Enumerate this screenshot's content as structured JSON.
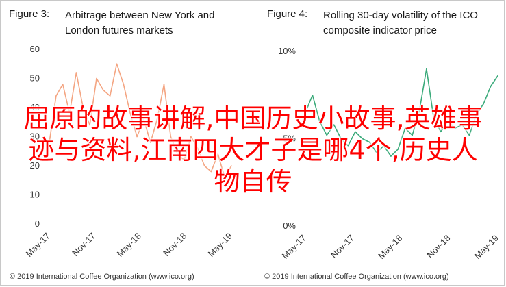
{
  "overlay": {
    "line1": "屈原的故事讲解,中国历史小故事,英雄事",
    "line2": "迹与资料,江南四大才子是哪4个,历史人",
    "line3": "物自传"
  },
  "chart_data": [
    {
      "type": "line",
      "figure_label": "Figure 3:",
      "title": "Arbitrage between New York and London futures markets",
      "title_line1": "Arbitrage between New York and",
      "title_line2": "London futures markets",
      "source": "© 2019 International Coffee Organization (www.ico.org)",
      "ylim": [
        0,
        60
      ],
      "yticks": [
        "0",
        "10",
        "20",
        "30",
        "40",
        "50",
        "60"
      ],
      "xticks": [
        "May-17",
        "Nov-17",
        "May-18",
        "Nov-18",
        "May-19"
      ],
      "line_color": "#f4a582",
      "x": [
        "2017-05",
        "2017-06",
        "2017-07",
        "2017-08",
        "2017-09",
        "2017-10",
        "2017-11",
        "2017-12",
        "2018-01",
        "2018-02",
        "2018-03",
        "2018-04",
        "2018-05",
        "2018-06",
        "2018-07",
        "2018-08",
        "2018-09",
        "2018-10",
        "2018-11",
        "2018-12",
        "2019-01",
        "2019-02",
        "2019-03",
        "2019-04",
        "2019-05",
        "2019-06",
        "2019-07",
        "2019-08"
      ],
      "values": [
        28,
        44,
        48,
        38,
        52,
        40,
        34,
        50,
        46,
        44,
        55,
        48,
        38,
        30,
        36,
        28,
        36,
        48,
        30,
        24,
        22,
        30,
        26,
        20,
        18,
        24,
        16,
        20
      ]
    },
    {
      "type": "line",
      "figure_label": "Figure 4:",
      "title": "Rolling 30-day volatility of the ICO composite indicator price",
      "title_line1": "Rolling 30-day volatility of the ICO",
      "title_line2": "composite indicator price",
      "source": "© 2019 International Coffee Organization (www.ico.org)",
      "ylim": [
        0,
        10
      ],
      "yticks": [
        "0%",
        "5%",
        "10%"
      ],
      "xticks": [
        "May-17",
        "Nov-17",
        "May-18",
        "Nov-18",
        "May-19"
      ],
      "line_color": "#3aaa7a",
      "x": [
        "2017-05",
        "2017-06",
        "2017-07",
        "2017-08",
        "2017-09",
        "2017-10",
        "2017-11",
        "2017-12",
        "2018-01",
        "2018-02",
        "2018-03",
        "2018-04",
        "2018-05",
        "2018-06",
        "2018-07",
        "2018-08",
        "2018-09",
        "2018-10",
        "2018-11",
        "2018-12",
        "2019-01",
        "2019-02",
        "2019-03",
        "2019-04",
        "2019-05",
        "2019-06",
        "2019-07",
        "2019-08"
      ],
      "values": [
        6.5,
        7.5,
        6.0,
        5.2,
        5.8,
        5.0,
        4.6,
        5.4,
        5.0,
        4.8,
        4.2,
        4.6,
        4.0,
        4.4,
        5.6,
        5.2,
        6.6,
        9.0,
        6.2,
        5.4,
        6.0,
        5.6,
        5.8,
        5.2,
        6.4,
        7.0,
        8.0,
        8.6
      ]
    }
  ]
}
